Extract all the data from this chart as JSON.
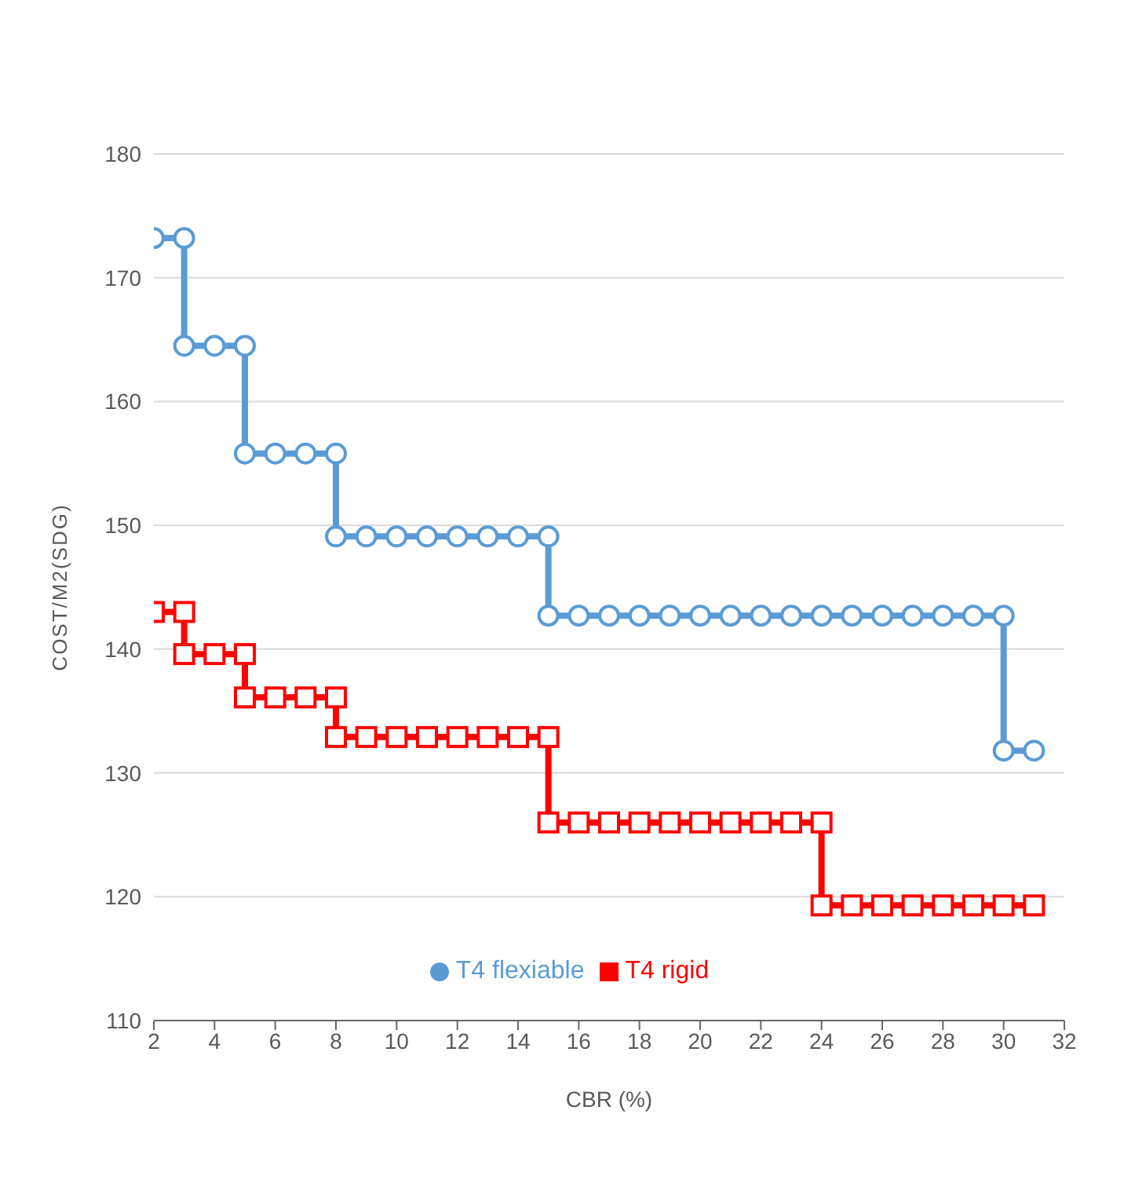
{
  "chart_data": {
    "type": "line",
    "xlabel": "CBR (%)",
    "ylabel": "COST/M2(SDG)",
    "xlim": [
      2,
      32
    ],
    "xticks": [
      2,
      4,
      6,
      8,
      10,
      12,
      14,
      16,
      18,
      20,
      22,
      24,
      26,
      28,
      30,
      32
    ],
    "ylim": [
      110,
      180
    ],
    "yticks": [
      110,
      120,
      130,
      140,
      150,
      160,
      170,
      180
    ],
    "grid": "y",
    "legend": "bottom",
    "series": [
      {
        "name": "T4 flexiable",
        "color": "#5b9bd5",
        "marker": "circle",
        "x": [
          2,
          3,
          3,
          4,
          5,
          5,
          6,
          7,
          8,
          8,
          9,
          10,
          11,
          12,
          13,
          14,
          15,
          15,
          16,
          17,
          18,
          19,
          20,
          21,
          22,
          23,
          24,
          25,
          26,
          27,
          28,
          29,
          30,
          30,
          31
        ],
        "values": [
          173.2,
          173.2,
          164.5,
          164.5,
          164.5,
          155.8,
          155.8,
          155.8,
          155.8,
          149.1,
          149.1,
          149.1,
          149.1,
          149.1,
          149.1,
          149.1,
          149.1,
          142.7,
          142.7,
          142.7,
          142.7,
          142.7,
          142.7,
          142.7,
          142.7,
          142.7,
          142.7,
          142.7,
          142.7,
          142.7,
          142.7,
          142.7,
          142.7,
          131.8,
          131.8
        ]
      },
      {
        "name": "T4 rigid",
        "color": "#ff0000",
        "marker": "square",
        "x": [
          2,
          3,
          3,
          4,
          5,
          5,
          6,
          7,
          8,
          8,
          9,
          10,
          11,
          12,
          13,
          14,
          15,
          15,
          16,
          17,
          18,
          19,
          20,
          21,
          22,
          23,
          24,
          24,
          25,
          26,
          27,
          28,
          29,
          30,
          31
        ],
        "values": [
          143,
          143,
          139.6,
          139.6,
          139.6,
          136.1,
          136.1,
          136.1,
          136.1,
          132.9,
          132.9,
          132.9,
          132.9,
          132.9,
          132.9,
          132.9,
          132.9,
          126,
          126,
          126,
          126,
          126,
          126,
          126,
          126,
          126,
          126,
          119.3,
          119.3,
          119.3,
          119.3,
          119.3,
          119.3,
          119.3,
          119.3
        ]
      }
    ]
  }
}
